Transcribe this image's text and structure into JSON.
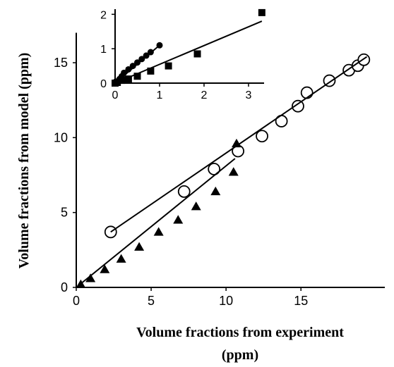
{
  "chart_data": [
    {
      "type": "scatter",
      "xlabel": [
        "Volume fractions from experiment",
        "(ppm)"
      ],
      "ylabel": "Volume fractions from model (ppm)",
      "xlim": [
        0,
        20.6
      ],
      "ylim": [
        0,
        17
      ],
      "xticks": [
        0,
        5,
        10,
        15
      ],
      "yticks": [
        0,
        5,
        10,
        15
      ],
      "series": [
        {
          "marker": "open-circle",
          "color": "#000000",
          "x": [
            2.3,
            7.2,
            9.2,
            10.8,
            12.4,
            13.7,
            14.8,
            15.4,
            16.9,
            18.2,
            18.8,
            19.2
          ],
          "values": [
            3.7,
            6.4,
            7.9,
            9.1,
            10.1,
            11.1,
            12.1,
            13.0,
            13.8,
            14.5,
            14.8,
            15.2
          ]
        },
        {
          "marker": "triangle",
          "color": "#000000",
          "x": [
            0.3,
            0.95,
            1.9,
            3.0,
            4.2,
            5.5,
            6.8,
            8.0,
            9.3,
            10.5,
            10.7
          ],
          "values": [
            0.2,
            0.6,
            1.2,
            1.9,
            2.7,
            3.7,
            4.5,
            5.4,
            6.4,
            7.7,
            9.6
          ]
        },
        {
          "marker": "line",
          "color": "#000000",
          "x": [
            2.3,
            19.4
          ],
          "values": [
            3.7,
            15.4
          ]
        },
        {
          "marker": "line",
          "color": "#000000",
          "x": [
            0,
            10.6
          ],
          "values": [
            0,
            8.6
          ]
        }
      ]
    },
    {
      "type": "scatter",
      "xlim": [
        0,
        3.35
      ],
      "ylim": [
        0,
        2.15
      ],
      "xticks": [
        0,
        1,
        2,
        3
      ],
      "yticks": [
        0,
        1,
        2
      ],
      "series": [
        {
          "marker": "filled-circle",
          "color": "#000000",
          "x": [
            0.05,
            0.1,
            0.15,
            0.2,
            0.3,
            0.4,
            0.5,
            0.6,
            0.7,
            0.8,
            1.0
          ],
          "values": [
            0.05,
            0.12,
            0.2,
            0.3,
            0.4,
            0.5,
            0.6,
            0.7,
            0.8,
            0.9,
            1.1
          ]
        },
        {
          "marker": "square",
          "color": "#000000",
          "x": [
            0,
            0.05,
            0.15,
            0.3,
            0.5,
            0.8,
            1.2,
            1.85,
            3.3
          ],
          "values": [
            0,
            0.02,
            0.08,
            0.12,
            0.2,
            0.35,
            0.5,
            0.85,
            2.05
          ]
        },
        {
          "marker": "line",
          "color": "#000000",
          "x": [
            0,
            1.0
          ],
          "values": [
            0,
            1.1
          ]
        },
        {
          "marker": "line",
          "color": "#000000",
          "x": [
            0,
            3.3
          ],
          "values": [
            0,
            1.8
          ]
        }
      ]
    }
  ]
}
